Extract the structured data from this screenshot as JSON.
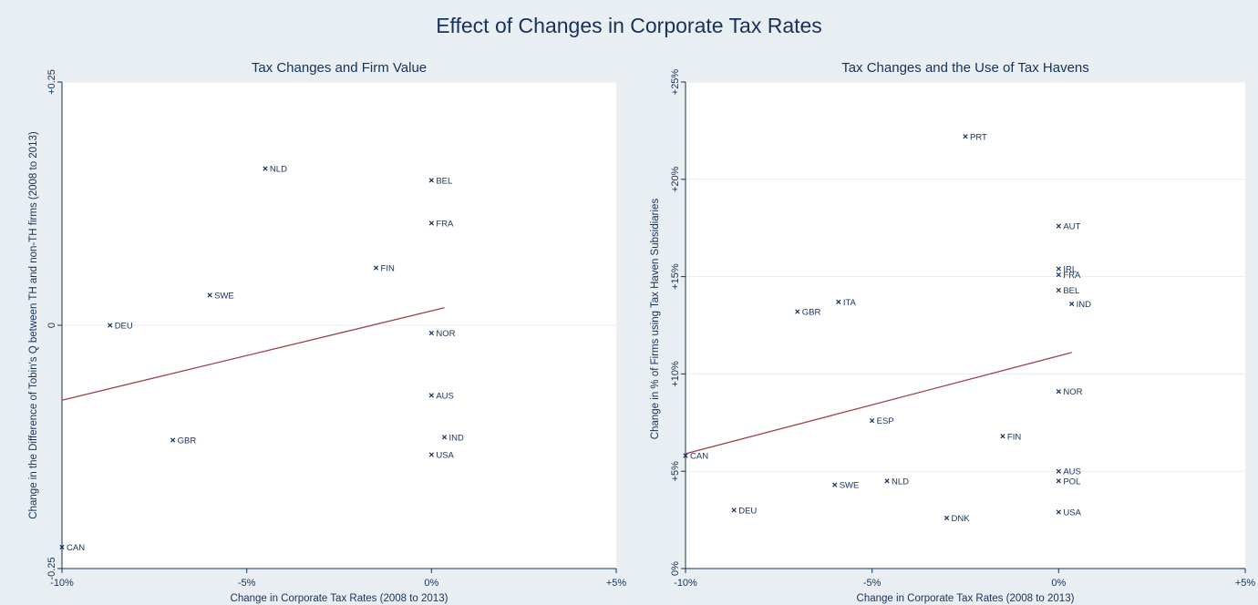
{
  "figure": {
    "title": "Effect of Changes in Corporate Tax Rates"
  },
  "colors": {
    "background": "#e9eef2",
    "plot_background": "#ffffff",
    "text": "#15325a",
    "fit_line": "#a0404a",
    "gridline": "#e8edf1"
  },
  "chart_data": [
    {
      "type": "scatter",
      "title": "Tax Changes and Firm Value",
      "xlabel": "Change in Corporate Tax Rates (2008 to 2013)",
      "ylabel": "Change in the Difference of Tobin's Q between TH and non-TH firms (2008 to 2013)",
      "xlim": [
        -10,
        5
      ],
      "ylim": [
        -0.25,
        0.25
      ],
      "xticks": [
        -10,
        -5,
        0,
        5
      ],
      "xtick_labels": [
        "-10%",
        "-5%",
        "0%",
        "+5%"
      ],
      "yticks": [
        -0.25,
        0,
        0.25
      ],
      "ytick_labels": [
        "-0.25",
        "0",
        "+0.25"
      ],
      "grid": true,
      "points": [
        {
          "label": "NLD",
          "x": -4.5,
          "y": 0.161
        },
        {
          "label": "BEL",
          "x": 0.0,
          "y": 0.149
        },
        {
          "label": "FRA",
          "x": 0.0,
          "y": 0.105
        },
        {
          "label": "FIN",
          "x": -1.5,
          "y": 0.059
        },
        {
          "label": "SWE",
          "x": -6.0,
          "y": 0.031
        },
        {
          "label": "DEU",
          "x": -8.7,
          "y": 0.0
        },
        {
          "label": "NOR",
          "x": 0.0,
          "y": -0.008
        },
        {
          "label": "AUS",
          "x": 0.0,
          "y": -0.072
        },
        {
          "label": "IND",
          "x": 0.35,
          "y": -0.115
        },
        {
          "label": "GBR",
          "x": -7.0,
          "y": -0.118
        },
        {
          "label": "USA",
          "x": 0.0,
          "y": -0.133
        },
        {
          "label": "CAN",
          "x": -10.0,
          "y": -0.228
        }
      ],
      "fit_line": {
        "x": [
          -10,
          0.35
        ],
        "y": [
          -0.077,
          0.018
        ]
      }
    },
    {
      "type": "scatter",
      "title": "Tax Changes and the Use of Tax Havens",
      "xlabel": "Change in Corporate Tax Rates (2008 to 2013)",
      "ylabel": "Change in % of Firms using Tax Haven Subsidiaries",
      "xlim": [
        -10,
        5
      ],
      "ylim": [
        0,
        25
      ],
      "xticks": [
        -10,
        -5,
        0,
        5
      ],
      "xtick_labels": [
        "-10%",
        "-5%",
        "0%",
        "+5%"
      ],
      "yticks": [
        0,
        5,
        10,
        15,
        20,
        25
      ],
      "ytick_labels": [
        "0%",
        "+5%",
        "+10%",
        "+15%",
        "+20%",
        "+25%"
      ],
      "grid": true,
      "points": [
        {
          "label": "PRT",
          "x": -2.5,
          "y": 22.2
        },
        {
          "label": "AUT",
          "x": 0.0,
          "y": 17.6
        },
        {
          "label": "IRL",
          "x": 0.0,
          "y": 15.4
        },
        {
          "label": "FRA",
          "x": 0.0,
          "y": 15.1
        },
        {
          "label": "BEL",
          "x": 0.0,
          "y": 14.3
        },
        {
          "label": "ITA",
          "x": -5.9,
          "y": 13.7
        },
        {
          "label": "IND",
          "x": 0.35,
          "y": 13.6
        },
        {
          "label": "GBR",
          "x": -7.0,
          "y": 13.2
        },
        {
          "label": "NOR",
          "x": 0.0,
          "y": 9.1
        },
        {
          "label": "ESP",
          "x": -5.0,
          "y": 7.6
        },
        {
          "label": "FIN",
          "x": -1.5,
          "y": 6.8
        },
        {
          "label": "CAN",
          "x": -10.0,
          "y": 5.8
        },
        {
          "label": "AUS",
          "x": 0.0,
          "y": 5.0
        },
        {
          "label": "POL",
          "x": 0.0,
          "y": 4.5
        },
        {
          "label": "NLD",
          "x": -4.6,
          "y": 4.5
        },
        {
          "label": "SWE",
          "x": -6.0,
          "y": 4.3
        },
        {
          "label": "DEU",
          "x": -8.7,
          "y": 3.0
        },
        {
          "label": "USA",
          "x": 0.0,
          "y": 2.9
        },
        {
          "label": "DNK",
          "x": -3.0,
          "y": 2.6
        }
      ],
      "fit_line": {
        "x": [
          -10,
          0.35
        ],
        "y": [
          5.9,
          11.1
        ]
      }
    }
  ]
}
